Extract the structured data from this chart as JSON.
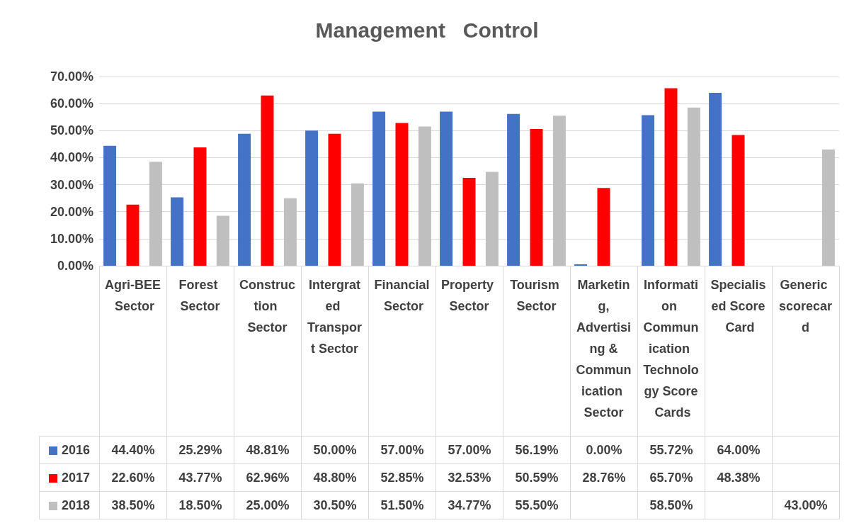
{
  "chart_data": {
    "type": "bar",
    "title": "Management   Control",
    "categories": [
      "Agri-BEE Sector",
      "Forest Sector",
      "Construction Sector",
      "Intergrated Transport Sector",
      "Financial Sector",
      "Property Sector",
      "Tourism Sector",
      "Marketing,Advertising &Communication Sector",
      "Information Communication Technology Score Cards",
      "Specialised Score Card",
      "Generic scorecard"
    ],
    "series": [
      {
        "name": "2016",
        "color": "#4472c4",
        "values": [
          44.4,
          25.29,
          48.81,
          50.0,
          57.0,
          57.0,
          56.19,
          0.0,
          55.72,
          64.0,
          null
        ],
        "value_labels": [
          "44.40%",
          "25.29%",
          "48.81%",
          "50.00%",
          "57.00%",
          "57.00%",
          "56.19%",
          "0.00%",
          "55.72%",
          "64.00%",
          null
        ]
      },
      {
        "name": "2017",
        "color": "#ff0000",
        "values": [
          22.6,
          43.77,
          62.96,
          48.8,
          52.85,
          32.53,
          50.59,
          28.76,
          65.7,
          48.38,
          null
        ],
        "value_labels": [
          "22.60%",
          "43.77%",
          "62.96%",
          "48.80%",
          "52.85%",
          "32.53%",
          "50.59%",
          "28.76%",
          "65.70%",
          "48.38%",
          null
        ]
      },
      {
        "name": "2018",
        "color": "#bfbfbf",
        "values": [
          38.5,
          18.5,
          25.0,
          30.5,
          51.5,
          34.77,
          55.5,
          null,
          58.5,
          null,
          43.0
        ],
        "value_labels": [
          "38.50%",
          "18.50%",
          "25.00%",
          "30.50%",
          "51.50%",
          "34.77%",
          "55.50%",
          null,
          "58.50%",
          null,
          "43.00%"
        ]
      }
    ],
    "ylim": [
      0,
      70
    ],
    "yticks": [
      {
        "value": 0,
        "label": "0.00%"
      },
      {
        "value": 10,
        "label": "10.00%"
      },
      {
        "value": 20,
        "label": "20.00%"
      },
      {
        "value": 30,
        "label": "30.00%"
      },
      {
        "value": 40,
        "label": "40.00%"
      },
      {
        "value": 50,
        "label": "50.00%"
      },
      {
        "value": 60,
        "label": "60.00%"
      },
      {
        "value": 70,
        "label": "70.00%"
      }
    ],
    "grid": "y",
    "legend": "bottom"
  }
}
